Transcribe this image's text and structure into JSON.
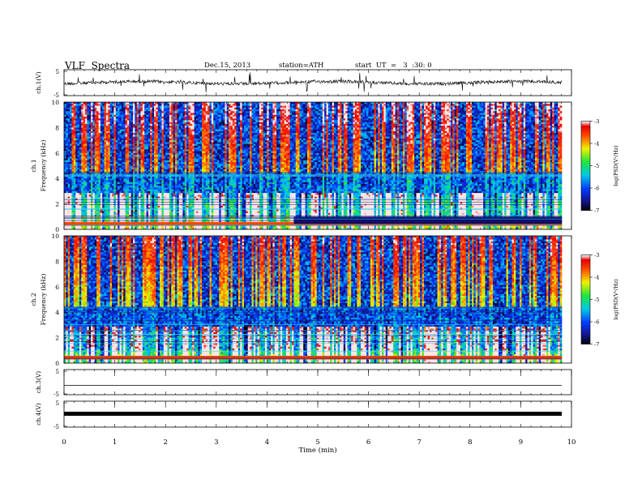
{
  "header": {
    "title": "VLF  Spectra",
    "date": "Dec.15, 2013",
    "station": "station=ATH",
    "start": "start  UT  =   3  :30: 0"
  },
  "chart_data": [
    {
      "type": "line",
      "panel": "ch1-waveform",
      "ylabel": "ch.1(V)",
      "ylim": [
        -5,
        5
      ],
      "yticks": [
        "5",
        "-5"
      ]
    },
    {
      "type": "heatmap",
      "panel": "ch1-spectrogram",
      "ylabel": "ch.1\nFrequency (kHz)",
      "ylabel_lines": [
        "ch.1",
        "Frequency  (kHz)"
      ],
      "ylim": [
        0,
        10
      ],
      "yticks": [
        "0",
        "2",
        "4",
        "6",
        "8",
        "10"
      ],
      "colorbar": {
        "label": "log(PSD(V²/Hz)",
        "ticks": [
          "-3",
          "-4",
          "-5",
          "-6",
          "-7"
        ],
        "range": [
          -7,
          -3
        ]
      }
    },
    {
      "type": "heatmap",
      "panel": "ch2-spectrogram",
      "ylabel": "ch.2\nFrequency (kHz)",
      "ylabel_lines": [
        "ch.2",
        "Frequency  (kHz)"
      ],
      "ylim": [
        0,
        10
      ],
      "yticks": [
        "0",
        "2",
        "4",
        "6",
        "8",
        "10"
      ],
      "colorbar": {
        "label": "log(PSD(V²/Hz)",
        "ticks": [
          "-3",
          "-4",
          "-5",
          "-6",
          "-7"
        ],
        "range": [
          -7,
          -3
        ]
      }
    },
    {
      "type": "line",
      "panel": "ch3-waveform",
      "ylabel": "ch.3(V)",
      "ylim": [
        -5,
        5
      ],
      "yticks": [
        "5",
        "-5"
      ]
    },
    {
      "type": "line",
      "panel": "ch4-waveform",
      "ylabel": "ch.4(V)",
      "ylim": [
        -5,
        5
      ],
      "yticks": [
        "5",
        "-5"
      ]
    },
    {
      "type": "axis",
      "xlabel": "Time  (min)",
      "xlim": [
        0,
        10
      ],
      "xticks": [
        "0",
        "1",
        "2",
        "3",
        "4",
        "5",
        "6",
        "7",
        "8",
        "9",
        "10"
      ]
    }
  ]
}
